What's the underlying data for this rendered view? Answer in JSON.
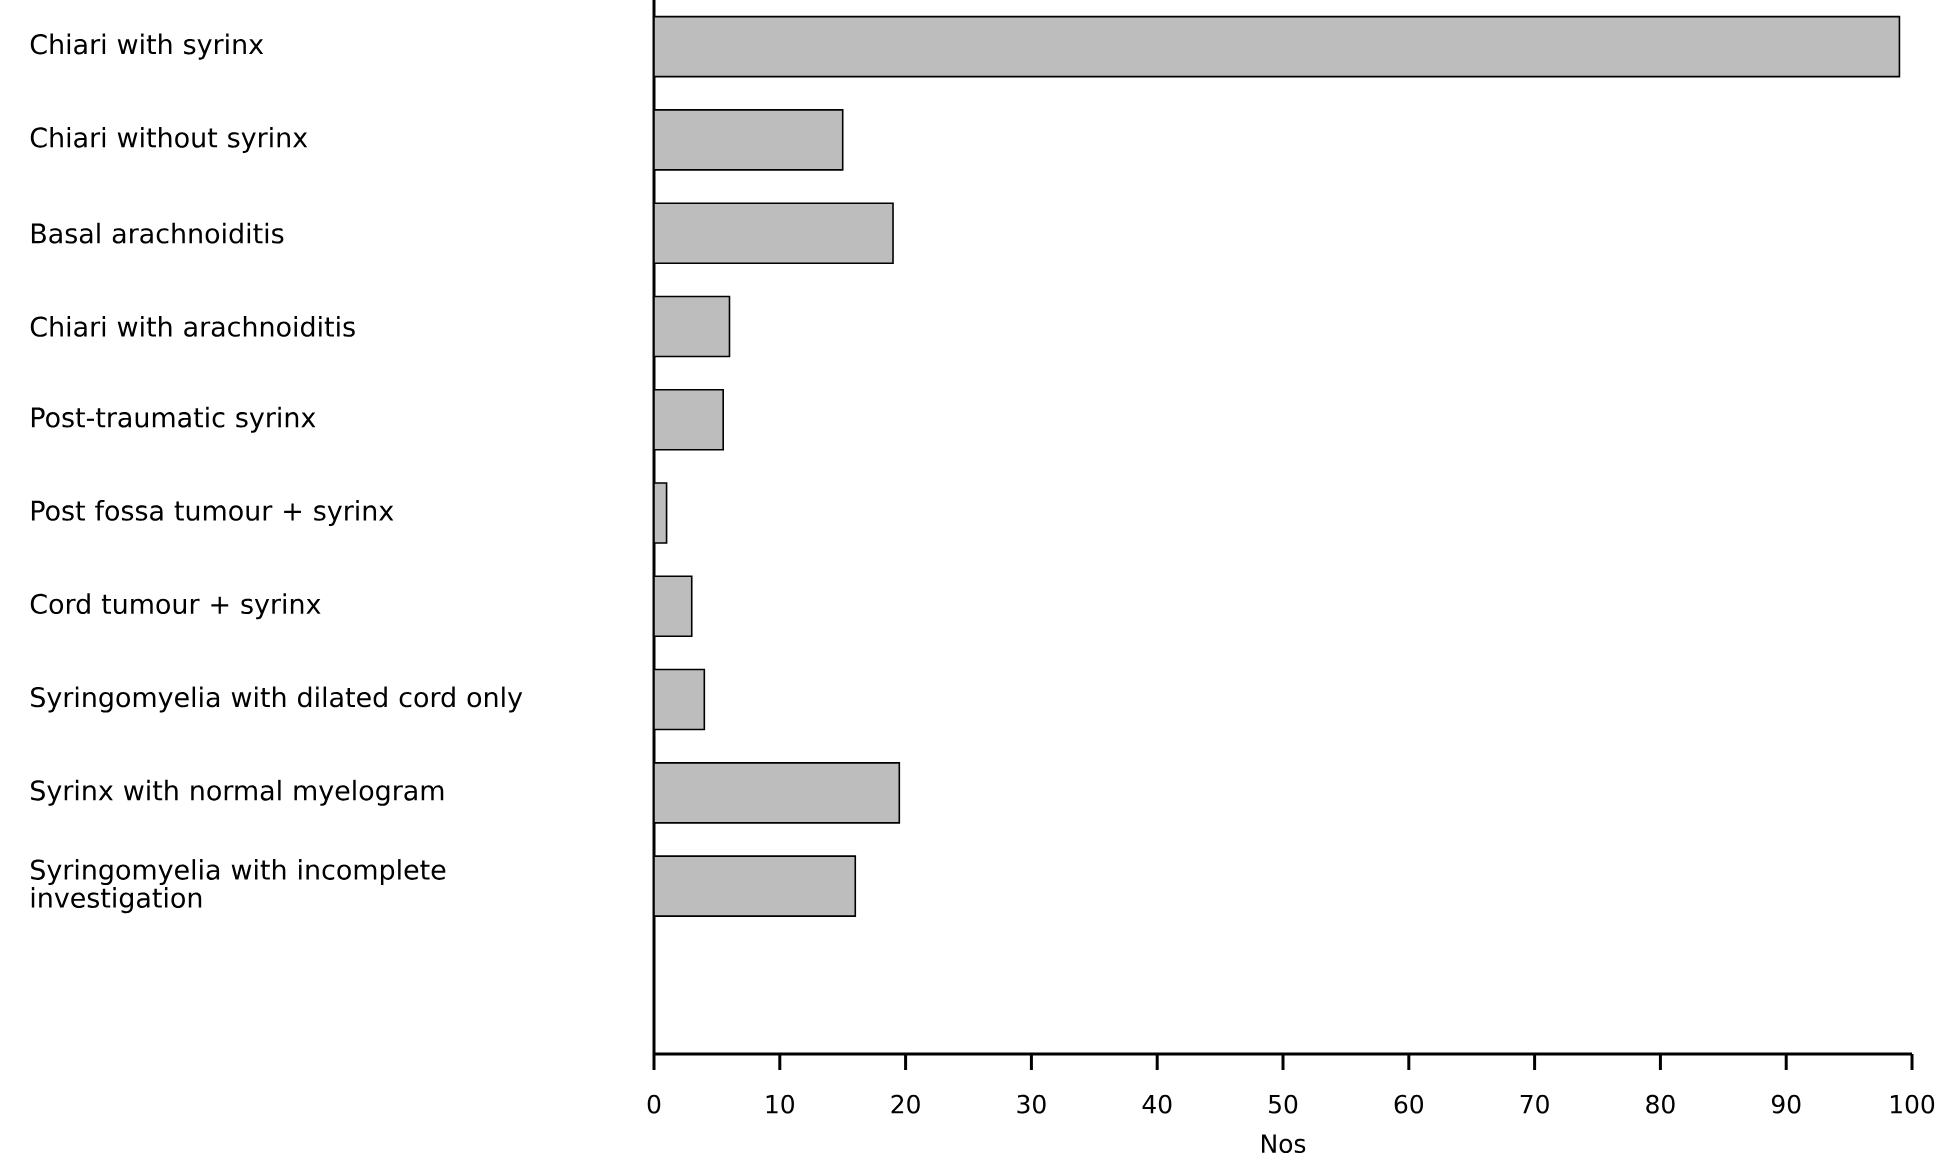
{
  "chart_data": {
    "type": "bar",
    "orientation": "horizontal",
    "xlabel": "Nos",
    "categories": [
      "Chiari with syrinx",
      "Chiari without syrinx",
      "Basal arachnoiditis",
      "Chiari with arachnoiditis",
      "Post-traumatic syrinx",
      "Post fossa tumour + syrinx",
      "Cord tumour + syrinx",
      "Syringomyelia with dilated cord only",
      "Syrinx with normal myelogram",
      "Syringomyelia with incomplete investigation"
    ],
    "values": [
      99,
      15,
      19,
      6,
      5.5,
      1,
      3,
      4,
      19.5,
      16
    ],
    "color": "#bdbdbd",
    "xlim": [
      0,
      100
    ],
    "xticks": [
      0,
      10,
      20,
      30,
      40,
      50,
      60,
      70,
      80,
      90,
      100
    ],
    "grid": false
  }
}
